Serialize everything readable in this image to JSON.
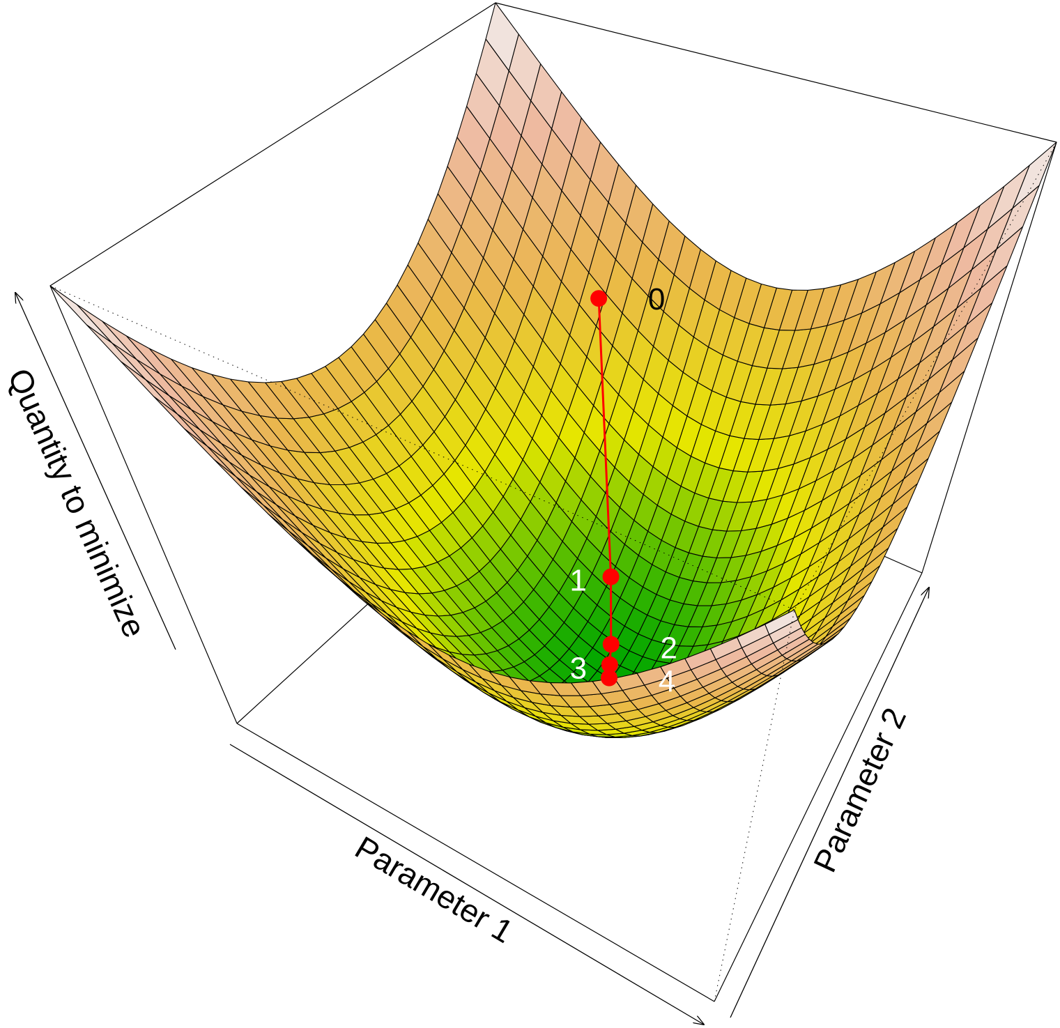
{
  "chart_data": {
    "type": "surface",
    "title": "",
    "xlabel": "Parameter 1",
    "ylabel": "Parameter 2",
    "zlabel": "Quantity to minimize",
    "function": "z = p1^2 + p2^2",
    "xlim": [
      -1,
      1
    ],
    "ylim": [
      -1,
      1
    ],
    "zlim": [
      0,
      2
    ],
    "grid_cells": 30,
    "colormap": [
      "#00A600",
      "#E6E600",
      "#EAB64E",
      "#EEB99F",
      "#F2F2F2"
    ],
    "path": {
      "color": "#FF0000",
      "points": [
        {
          "label": "0",
          "p1": -0.55,
          "p2": 0.78,
          "label_color": "#000000"
        },
        {
          "label": "1",
          "p1": -0.2,
          "p2": 0.3,
          "label_color": "#FFFFFF"
        },
        {
          "label": "2",
          "p1": -0.08,
          "p2": 0.12,
          "label_color": "#FFFFFF"
        },
        {
          "label": "3",
          "p1": -0.04,
          "p2": 0.05,
          "label_color": "#FFFFFF"
        },
        {
          "label": "4",
          "p1": -0.01,
          "p2": 0.0,
          "label_color": "#FFFFFF"
        }
      ]
    }
  }
}
